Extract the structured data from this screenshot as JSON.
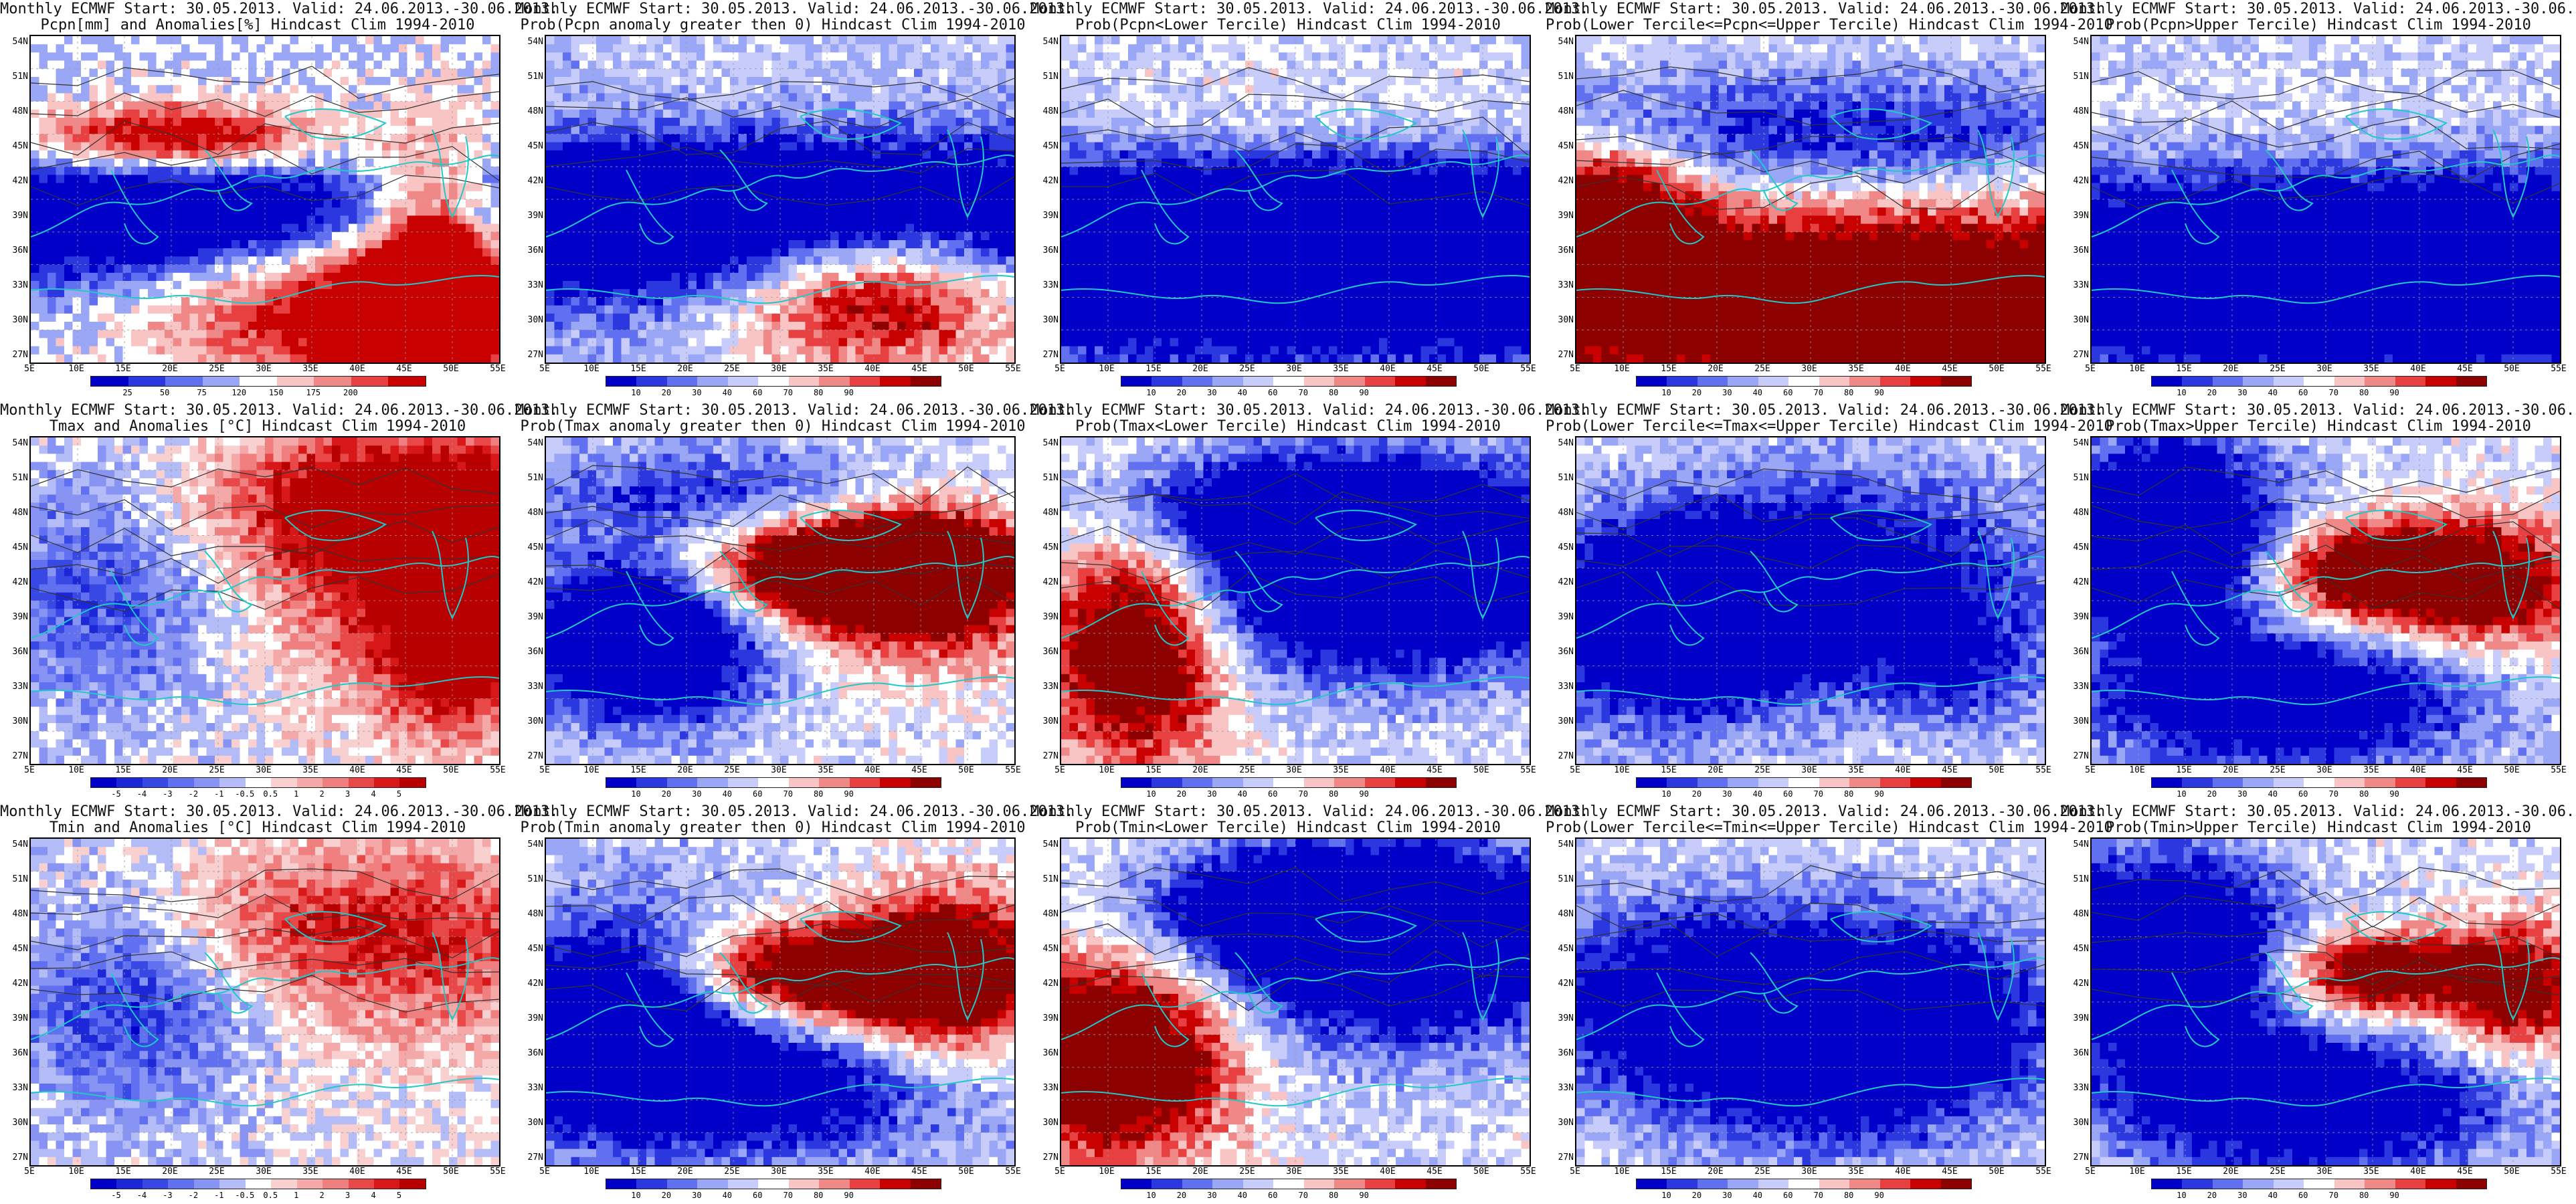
{
  "header_line": "Monthly ECMWF Start: 30.05.2013. Valid: 24.06.2013.-30.06.2013.",
  "lat_labels": [
    "54N",
    "51N",
    "48N",
    "45N",
    "42N",
    "39N",
    "36N",
    "33N",
    "30N",
    "27N"
  ],
  "lon_labels": [
    "5E",
    "10E",
    "15E",
    "20E",
    "25E",
    "30E",
    "35E",
    "40E",
    "45E",
    "50E",
    "55E"
  ],
  "panels": [
    {
      "row": 0,
      "col": 0,
      "subtitle": "Pcpn[mm] and Anomalies[%] Hindcast Clim 1994-2010",
      "field": "pcpn_anom",
      "scale": "anom_pcp"
    },
    {
      "row": 0,
      "col": 1,
      "subtitle": "Prob(Pcpn anomaly greater then 0) Hindcast Clim 1994-2010",
      "field": "pcpn_p0",
      "scale": "prob"
    },
    {
      "row": 0,
      "col": 2,
      "subtitle": "Prob(Pcpn<Lower Tercile) Hindcast Clim 1994-2010",
      "field": "pcpn_low",
      "scale": "prob"
    },
    {
      "row": 0,
      "col": 3,
      "subtitle": "Prob(Lower Tercile<=Pcpn<=Upper Tercile) Hindcast Clim 1994-2010",
      "field": "pcpn_mid",
      "scale": "prob"
    },
    {
      "row": 0,
      "col": 4,
      "subtitle": "Prob(Pcpn>Upper Tercile) Hindcast Clim 1994-2010",
      "field": "pcpn_up",
      "scale": "prob"
    },
    {
      "row": 1,
      "col": 0,
      "subtitle": "Tmax and Anomalies [°C] Hindcast Clim 1994-2010",
      "field": "tmax_anom",
      "scale": "anom_t"
    },
    {
      "row": 1,
      "col": 1,
      "subtitle": "Prob(Tmax anomaly greater then 0) Hindcast Clim 1994-2010",
      "field": "tmax_p0",
      "scale": "prob"
    },
    {
      "row": 1,
      "col": 2,
      "subtitle": "Prob(Tmax<Lower Tercile) Hindcast Clim 1994-2010",
      "field": "tmax_low",
      "scale": "prob"
    },
    {
      "row": 1,
      "col": 3,
      "subtitle": "Prob(Lower Tercile<=Tmax<=Upper Tercile) Hindcast Clim 1994-2010",
      "field": "tmax_mid",
      "scale": "prob"
    },
    {
      "row": 1,
      "col": 4,
      "subtitle": "Prob(Tmax>Upper Tercile) Hindcast Clim 1994-2010",
      "field": "tmax_up",
      "scale": "prob"
    },
    {
      "row": 2,
      "col": 0,
      "subtitle": "Tmin and Anomalies [°C] Hindcast Clim 1994-2010",
      "field": "tmin_anom",
      "scale": "anom_t"
    },
    {
      "row": 2,
      "col": 1,
      "subtitle": "Prob(Tmin anomaly greater then 0) Hindcast Clim 1994-2010",
      "field": "tmin_p0",
      "scale": "prob"
    },
    {
      "row": 2,
      "col": 2,
      "subtitle": "Prob(Tmin<Lower Tercile) Hindcast Clim 1994-2010",
      "field": "tmin_low",
      "scale": "prob"
    },
    {
      "row": 2,
      "col": 3,
      "subtitle": "Prob(Lower Tercile<=Tmin<=Upper Tercile) Hindcast Clim 1994-2010",
      "field": "tmin_mid",
      "scale": "prob"
    },
    {
      "row": 2,
      "col": 4,
      "subtitle": "Prob(Tmin>Upper Tercile) Hindcast Clim 1994-2010",
      "field": "tmin_up",
      "scale": "prob"
    }
  ],
  "scales": {
    "prob": {
      "labels": [
        "10",
        "20",
        "30",
        "40",
        "60",
        "70",
        "80",
        "90"
      ],
      "colors": [
        "#0000c8",
        "#2b38e0",
        "#6070f0",
        "#9aa6f6",
        "#c8ccfa",
        "#ffffff",
        "#f8c4c4",
        "#f08888",
        "#e84040",
        "#c80000",
        "#8c0000"
      ]
    },
    "anom_pcp": {
      "labels": [
        "25",
        "50",
        "75",
        "120",
        "150",
        "175",
        "200"
      ],
      "colors": [
        "#0000c8",
        "#2b38e0",
        "#6070f0",
        "#9aa6f6",
        "#ffffff",
        "#f8c4c4",
        "#f08888",
        "#e84040",
        "#c80000"
      ]
    },
    "anom_t": {
      "labels": [
        "-5",
        "-4",
        "-3",
        "-2",
        "-1",
        "-0.5",
        "0.5",
        "1",
        "2",
        "3",
        "4",
        "5"
      ],
      "colors": [
        "#0000c8",
        "#1c28d8",
        "#3848e4",
        "#6070f0",
        "#8894f4",
        "#b4bcf8",
        "#ffffff",
        "#f8d0d0",
        "#f4a8a8",
        "#f08080",
        "#e84848",
        "#d81818",
        "#b80000"
      ]
    }
  },
  "colors": {
    "land_contour": "#20c8c8",
    "isoline": "#333333",
    "neutral": "#ffffff",
    "blue": "#1a2fd8",
    "red": "#d80000"
  },
  "fields": {
    "pcpn_anom": {
      "base": 0.45,
      "blobs": [
        [
          0.5,
          0.55,
          0.9,
          0.2,
          -0.9
        ],
        [
          0.7,
          0.75,
          0.4,
          0.3,
          0.8
        ],
        [
          0.3,
          0.3,
          0.3,
          0.1,
          0.7
        ],
        [
          0.85,
          0.7,
          0.15,
          0.35,
          0.9
        ]
      ]
    },
    "pcpn_p0": {
      "base": 0.35,
      "blobs": [
        [
          0.5,
          0.55,
          0.9,
          0.25,
          -0.9
        ],
        [
          0.7,
          0.75,
          0.35,
          0.25,
          0.85
        ],
        [
          0.5,
          0.2,
          0.6,
          0.2,
          0.1
        ]
      ]
    },
    "pcpn_low": {
      "base": 0.4,
      "blobs": [
        [
          0.5,
          0.65,
          1.2,
          0.3,
          -0.95
        ],
        [
          0.5,
          0.25,
          0.8,
          0.2,
          0.15
        ]
      ]
    },
    "pcpn_mid": {
      "base": 0.45,
      "blobs": [
        [
          0.6,
          0.8,
          0.9,
          0.3,
          0.9
        ],
        [
          0.05,
          0.5,
          0.2,
          0.2,
          0.7
        ],
        [
          0.5,
          0.3,
          0.8,
          0.2,
          -0.4
        ]
      ]
    },
    "pcpn_up": {
      "base": 0.4,
      "blobs": [
        [
          0.6,
          0.7,
          1.0,
          0.3,
          -0.9
        ],
        [
          0.5,
          0.3,
          0.8,
          0.2,
          0.1
        ]
      ]
    },
    "tmax_anom": {
      "base": 0.5,
      "blobs": [
        [
          0.85,
          0.35,
          0.35,
          0.4,
          0.55
        ],
        [
          0.7,
          0.2,
          0.4,
          0.2,
          0.35
        ],
        [
          0.15,
          0.45,
          0.3,
          0.4,
          -0.3
        ],
        [
          0.9,
          0.7,
          0.15,
          0.2,
          0.4
        ]
      ]
    },
    "tmax_p0": {
      "base": 0.45,
      "blobs": [
        [
          0.6,
          0.4,
          0.3,
          0.15,
          0.85
        ],
        [
          0.2,
          0.6,
          0.25,
          0.25,
          -0.9
        ],
        [
          0.8,
          0.4,
          0.25,
          0.25,
          0.7
        ],
        [
          0.4,
          0.15,
          0.6,
          0.15,
          -0.3
        ]
      ]
    },
    "tmax_low": {
      "base": 0.45,
      "blobs": [
        [
          0.15,
          0.6,
          0.2,
          0.35,
          0.9
        ],
        [
          0.65,
          0.4,
          0.5,
          0.3,
          -0.9
        ],
        [
          0.5,
          0.2,
          0.4,
          0.15,
          -0.4
        ]
      ]
    },
    "tmax_mid": {
      "base": 0.45,
      "blobs": [
        [
          0.2,
          0.55,
          0.3,
          0.3,
          -0.8
        ],
        [
          0.6,
          0.4,
          0.4,
          0.3,
          -0.5
        ],
        [
          0.8,
          0.7,
          0.2,
          0.2,
          -0.3
        ]
      ]
    },
    "tmax_up": {
      "base": 0.45,
      "blobs": [
        [
          0.15,
          0.3,
          0.25,
          0.3,
          -0.9
        ],
        [
          0.6,
          0.4,
          0.25,
          0.15,
          0.8
        ],
        [
          0.4,
          0.8,
          0.4,
          0.2,
          -0.7
        ],
        [
          0.85,
          0.45,
          0.2,
          0.2,
          0.5
        ]
      ]
    },
    "tmin_anom": {
      "base": 0.5,
      "blobs": [
        [
          0.85,
          0.3,
          0.3,
          0.3,
          0.35
        ],
        [
          0.5,
          0.25,
          0.3,
          0.2,
          0.25
        ],
        [
          0.2,
          0.5,
          0.25,
          0.35,
          -0.35
        ]
      ]
    },
    "tmin_p0": {
      "base": 0.4,
      "blobs": [
        [
          0.6,
          0.4,
          0.35,
          0.15,
          0.85
        ],
        [
          0.15,
          0.55,
          0.25,
          0.3,
          -0.85
        ],
        [
          0.85,
          0.4,
          0.2,
          0.3,
          0.6
        ],
        [
          0.5,
          0.75,
          0.4,
          0.2,
          -0.5
        ]
      ]
    },
    "tmin_low": {
      "base": 0.45,
      "blobs": [
        [
          0.1,
          0.65,
          0.25,
          0.3,
          0.9
        ],
        [
          0.7,
          0.3,
          0.4,
          0.3,
          -0.85
        ],
        [
          0.5,
          0.2,
          0.3,
          0.15,
          -0.5
        ]
      ]
    },
    "tmin_mid": {
      "base": 0.45,
      "blobs": [
        [
          0.3,
          0.5,
          0.4,
          0.3,
          -0.7
        ],
        [
          0.75,
          0.55,
          0.3,
          0.3,
          -0.5
        ],
        [
          0.5,
          0.8,
          0.3,
          0.2,
          -0.2
        ]
      ]
    },
    "tmin_up": {
      "base": 0.45,
      "blobs": [
        [
          0.15,
          0.35,
          0.25,
          0.3,
          -0.9
        ],
        [
          0.6,
          0.4,
          0.2,
          0.12,
          0.75
        ],
        [
          0.45,
          0.8,
          0.4,
          0.2,
          -0.75
        ],
        [
          0.9,
          0.45,
          0.15,
          0.2,
          0.6
        ]
      ]
    }
  }
}
